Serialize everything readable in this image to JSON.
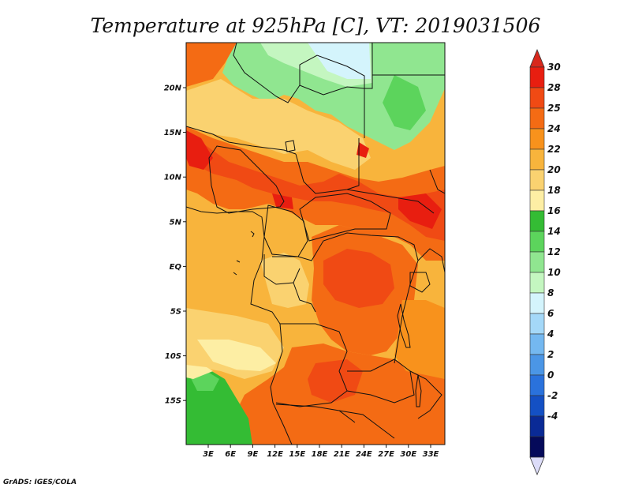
{
  "title": "Temperature at 925hPa [C], VT: 2019031506",
  "credit": "GrADS: IGES/COLA",
  "map": {
    "lon_labels": [
      "3E",
      "6E",
      "9E",
      "12E",
      "15E",
      "18E",
      "21E",
      "24E",
      "27E",
      "30E",
      "33E"
    ],
    "lat_labels": [
      "20N",
      "15N",
      "10N",
      "5N",
      "EQ",
      "5S",
      "10S",
      "15S"
    ]
  },
  "colorbar": {
    "levels": [
      "30",
      "28",
      "25",
      "24",
      "22",
      "20",
      "18",
      "16",
      "14",
      "12",
      "10",
      "8",
      "6",
      "4",
      "2",
      "0",
      "-2",
      "-4"
    ],
    "colors": [
      "#e81e10",
      "#f04a14",
      "#f46b14",
      "#f8921c",
      "#f8b43c",
      "#fad270",
      "#fdeea4",
      "#34bc34",
      "#5cd45c",
      "#90e690",
      "#c4f6c0",
      "#d4f4fc",
      "#a4d8f8",
      "#74b8f0",
      "#4b96e6",
      "#2a72dc",
      "#1450c4",
      "#0a2a96",
      "#050a5a"
    ],
    "top_arrow_color": "#d8281c",
    "bottom_arrow_color": "#dcdcf8"
  }
}
